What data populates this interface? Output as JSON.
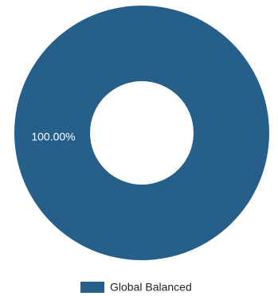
{
  "chart_data": {
    "type": "pie",
    "donut": true,
    "categories": [
      "Global Balanced"
    ],
    "values": [
      100
    ],
    "slice_labels": [
      "100.00%"
    ],
    "colors": [
      "#26608a"
    ],
    "legend": {
      "placement": "bottom",
      "entries": [
        "Global Balanced"
      ]
    },
    "title": "",
    "xlabel": "",
    "ylabel": ""
  }
}
